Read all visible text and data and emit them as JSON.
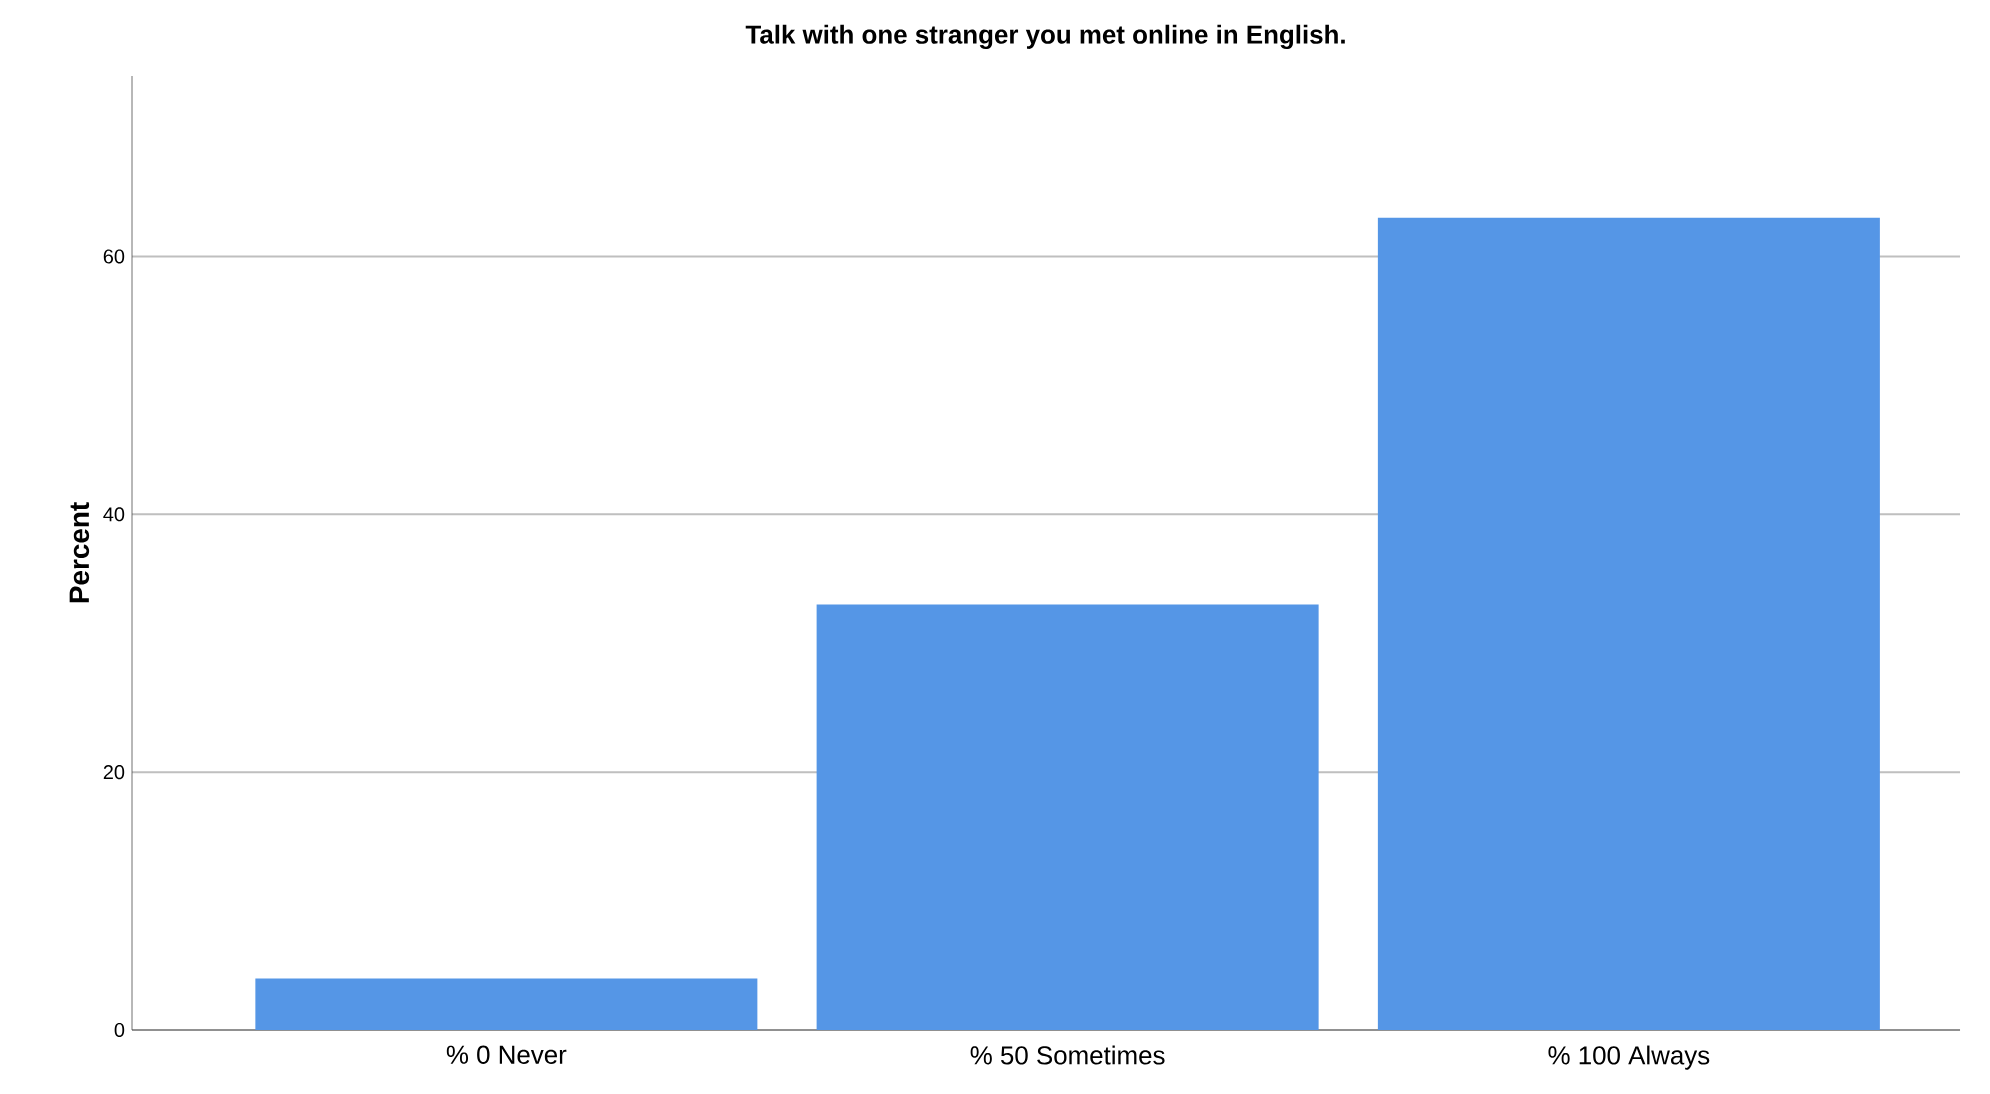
{
  "chart_data": {
    "type": "bar",
    "title": "Talk with one stranger you met online in English.",
    "ylabel": "Percent",
    "categories": [
      "% 0 Never",
      "% 50 Sometimes",
      "% 100 Always"
    ],
    "values": [
      4,
      33,
      63
    ],
    "color": "#5596e6",
    "ylim": [
      0,
      74
    ],
    "yticks": [
      0,
      20,
      40,
      60
    ],
    "grid": "y"
  }
}
